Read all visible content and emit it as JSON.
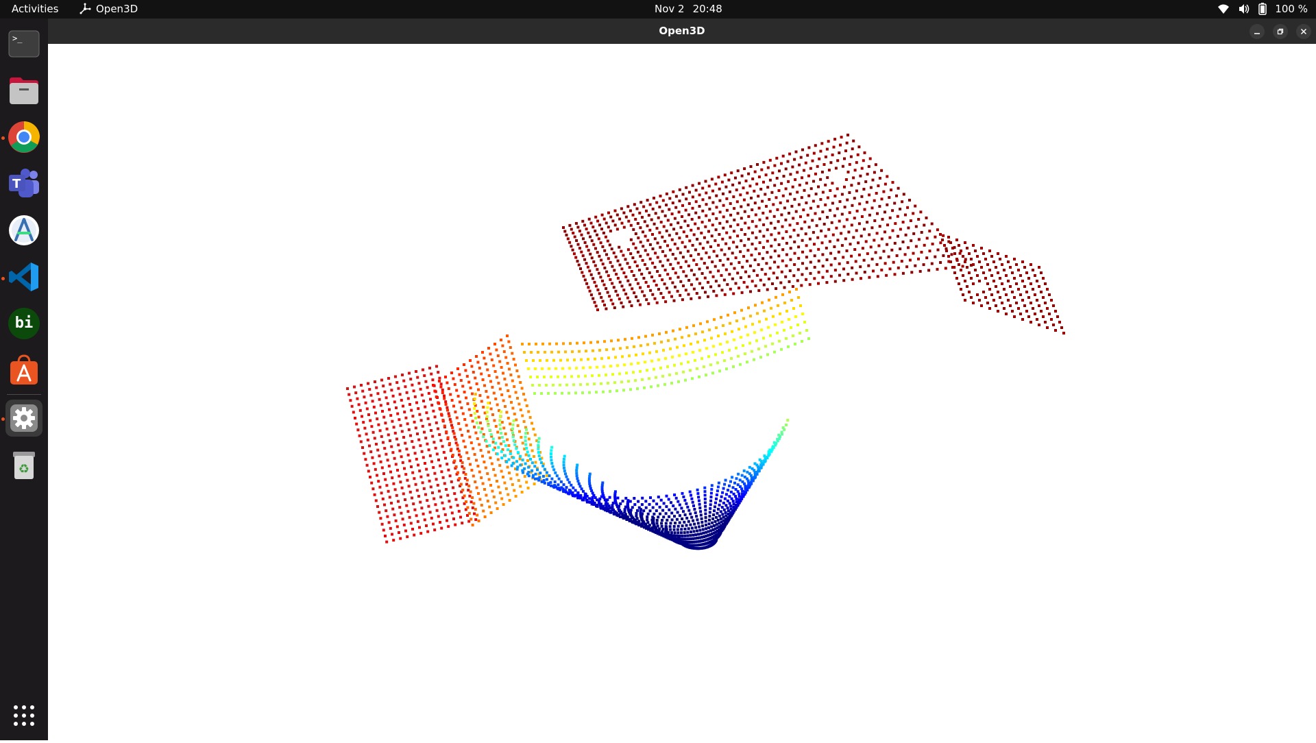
{
  "topbar": {
    "activities_label": "Activities",
    "app_name": "Open3D",
    "date": "Nov 2",
    "time": "20:48",
    "battery_percent": "100 %"
  },
  "dock": {
    "items": [
      {
        "name": "terminal-icon",
        "running": false
      },
      {
        "name": "files-icon",
        "running": false
      },
      {
        "name": "chrome-icon",
        "running": true
      },
      {
        "name": "teams-icon",
        "running": false
      },
      {
        "name": "android-studio-icon",
        "running": false
      },
      {
        "name": "vscode-icon",
        "running": true
      },
      {
        "name": "bi-icon",
        "running": false,
        "label": "bi"
      },
      {
        "name": "app-center-icon",
        "running": false
      },
      {
        "name": "settings-icon",
        "running": true
      },
      {
        "name": "trash-icon",
        "running": false
      }
    ]
  },
  "window": {
    "title": "Open3D"
  },
  "colors": {
    "topbar_bg": "#121212",
    "dock_bg": "#1d1a1d",
    "titlebar_bg": "#2b2b2b",
    "running_dot": "#e95420",
    "viewer_bg": "#ffffff"
  }
}
